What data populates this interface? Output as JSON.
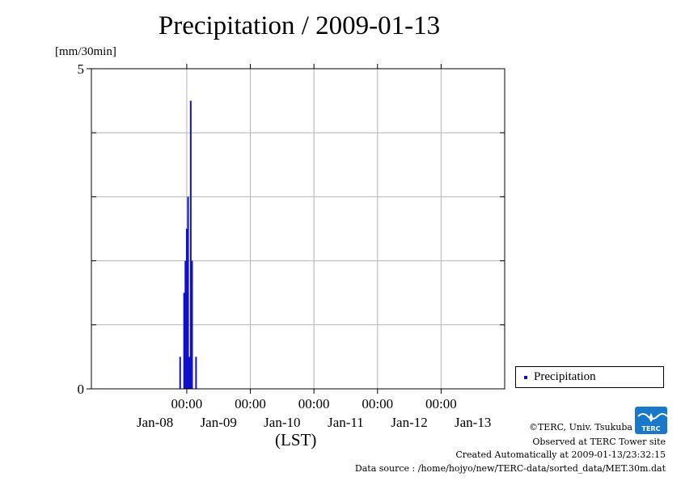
{
  "chart_data": {
    "type": "bar",
    "title": "Precipitation / 2009-01-13",
    "ylabel": "[mm/30min]",
    "xlabel": "(LST)",
    "ylim": [
      0,
      5
    ],
    "yticks": [
      "0",
      "5"
    ],
    "x_tick_labels": [
      {
        "time": "00:00",
        "date": "Jan-08"
      },
      {
        "time": "00:00",
        "date": "Jan-09"
      },
      {
        "time": "00:00",
        "date": "Jan-10"
      },
      {
        "time": "00:00",
        "date": "Jan-11"
      },
      {
        "time": "00:00",
        "date": "Jan-12"
      },
      {
        "time": "00:00",
        "date": "Jan-13"
      }
    ],
    "x_range": [
      "2009-01-07 12:00",
      "2009-01-13 24:00"
    ],
    "grid": true,
    "legend_position": "bottom-right",
    "series": [
      {
        "name": "Precipitation",
        "color": "#1010c8",
        "points": [
          {
            "x": "2009-01-08 21:30",
            "y": 0.5
          },
          {
            "x": "2009-01-08 23:00",
            "y": 1.5
          },
          {
            "x": "2009-01-08 23:30",
            "y": 2.0
          },
          {
            "x": "2009-01-09 00:00",
            "y": 2.5
          },
          {
            "x": "2009-01-09 00:30",
            "y": 3.0
          },
          {
            "x": "2009-01-09 01:00",
            "y": 0.5
          },
          {
            "x": "2009-01-09 01:30",
            "y": 4.5
          },
          {
            "x": "2009-01-09 02:00",
            "y": 2.0
          },
          {
            "x": "2009-01-09 03:30",
            "y": 0.5
          }
        ]
      }
    ]
  },
  "footer": {
    "credit": "©TERC, Univ. Tsukuba",
    "site": "Observed at TERC Tower site",
    "created": "Created Automatically at 2009-01-13/23:32:15",
    "source": "Data source : /home/hojyo/new/TERC-data/sorted_data/MET.30m.dat"
  },
  "logo": {
    "text": "TERC",
    "color": "#1a78c8"
  }
}
